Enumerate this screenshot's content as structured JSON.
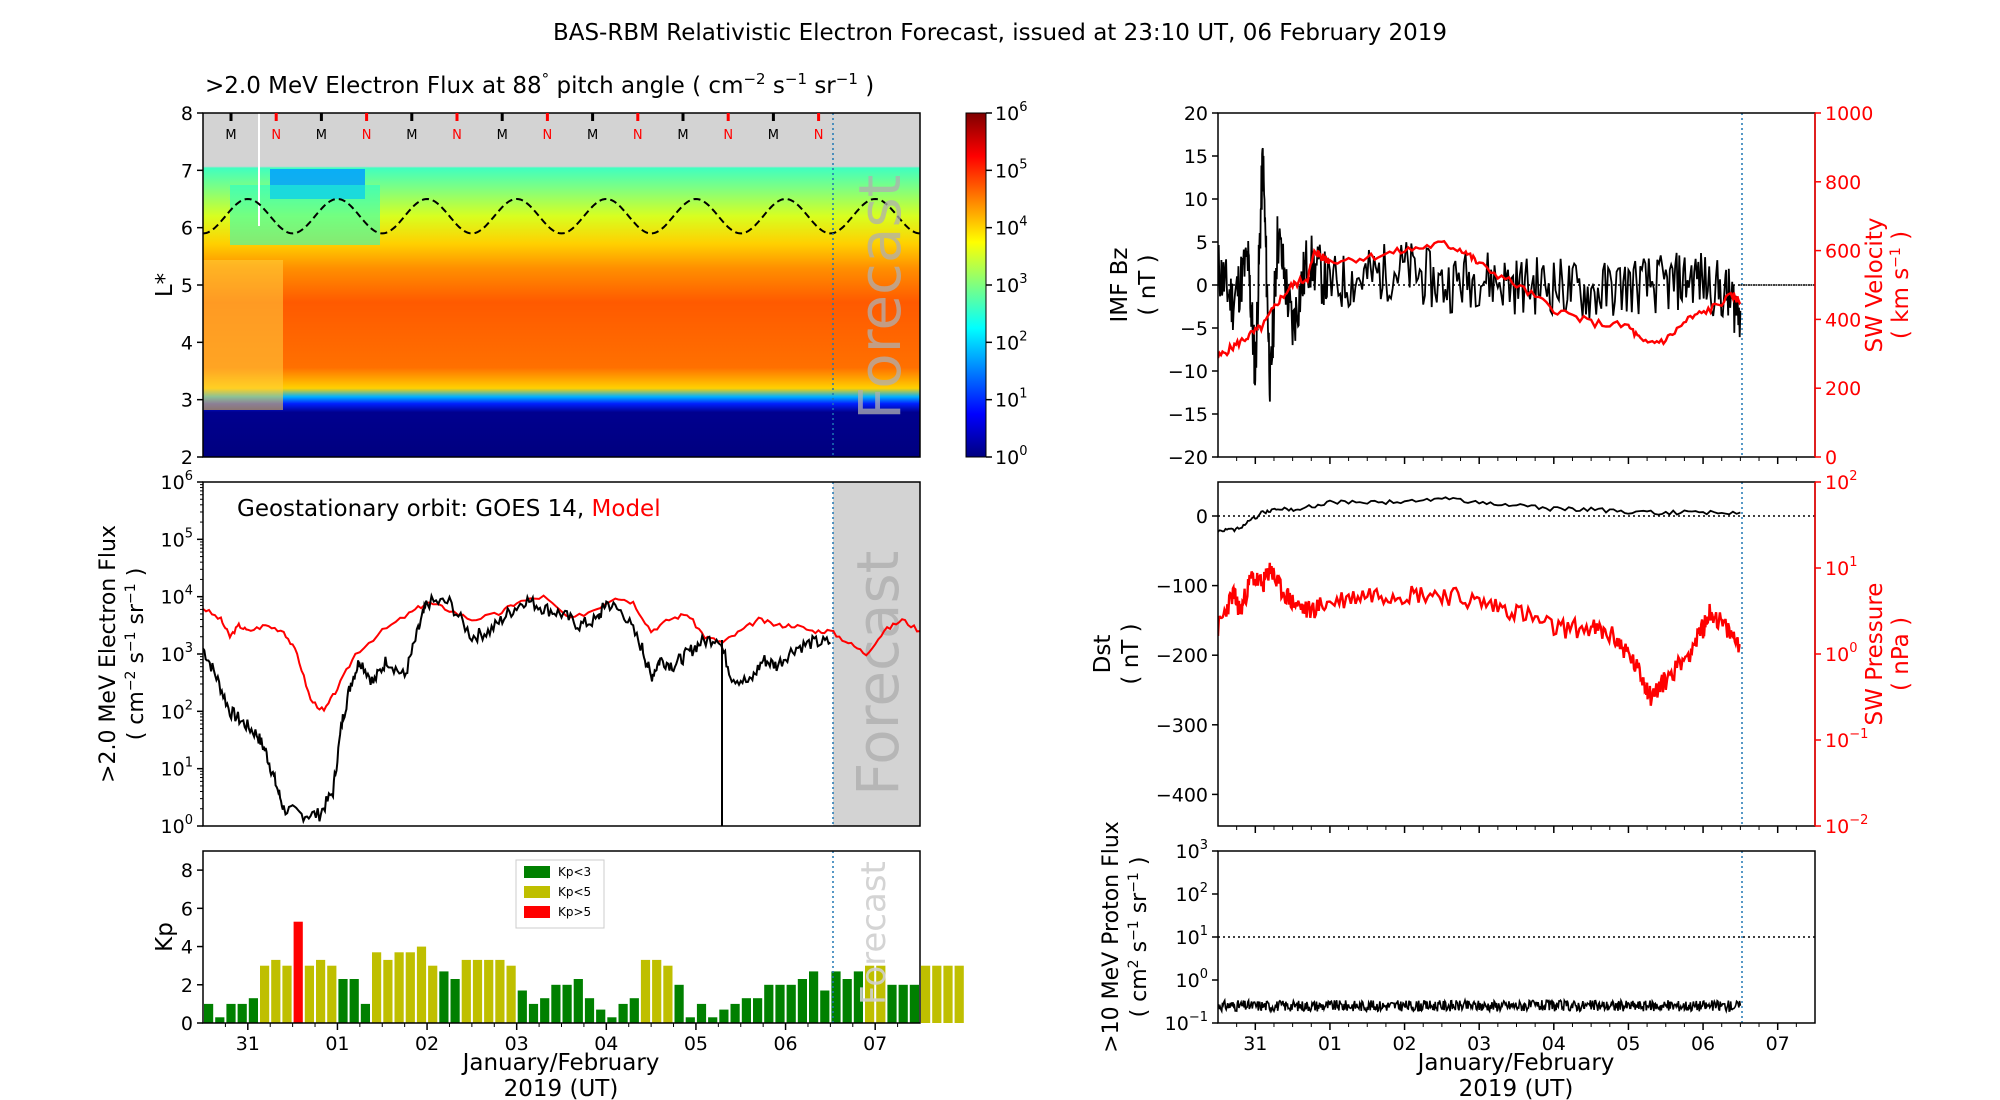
{
  "title": "BAS-RBM Relativistic Electron Forecast, issued at 23:10 UT, 06 February 2019",
  "x_axis": {
    "tick_labels": [
      "31",
      "01",
      "02",
      "03",
      "04",
      "05",
      "06",
      "07"
    ],
    "label_line1": "January/February",
    "label_line2": "2019 (UT)"
  },
  "forecast_label": "Forecast",
  "colors": {
    "model": "#ff0000",
    "kp_low": "#008000",
    "kp_mid": "#bfbf00",
    "kp_high": "#ff0000",
    "forecast_shade": "#d3d3d3",
    "dashed_line": "#1f77b4"
  },
  "panels": {
    "flux_map": {
      "title_main": ">2.0 MeV Electron Flux at 88",
      "title_deg": "°",
      "title_units_pre": "pitch angle ( cm",
      "title_units_post": " )",
      "ylabel": "L*",
      "y_ticks": [
        "2",
        "3",
        "4",
        "5",
        "6",
        "7",
        "8"
      ],
      "colorbar_ticks": [
        "0",
        "1",
        "2",
        "3",
        "4",
        "5",
        "6"
      ],
      "mn_markers": [
        "M",
        "N",
        "M",
        "N",
        "M",
        "N",
        "M",
        "N",
        "M",
        "N",
        "M",
        "N",
        "M",
        "N"
      ]
    },
    "geo": {
      "label_prefix": "Geostationary orbit:   GOES 14,",
      "label_model": "Model",
      "ylabel_line1": ">2.0 MeV Electron Flux",
      "ylabel_line2": "( cm",
      "y_exps": [
        "0",
        "1",
        "2",
        "3",
        "4",
        "5",
        "6"
      ]
    },
    "kp": {
      "ylabel": "Kp",
      "y_ticks": [
        "0",
        "2",
        "4",
        "6",
        "8"
      ],
      "legend": [
        "Kp<3",
        "Kp<5",
        "Kp>5"
      ]
    },
    "imf": {
      "ylabel_left1": "IMF Bz",
      "ylabel_left2": "( nT )",
      "ylabel_right1": "SW Velocity",
      "ylabel_right2": "( km s",
      "y_left_ticks": [
        "20",
        "15",
        "10",
        "5",
        "0",
        "−5",
        "−10",
        "−15",
        "−20"
      ],
      "y_right_ticks": [
        "1000",
        "800",
        "600",
        "400",
        "200",
        "0"
      ]
    },
    "dst": {
      "ylabel_left1": "Dst",
      "ylabel_left2": "( nT )",
      "ylabel_right1": "SW Pressure",
      "ylabel_right2": "( nPa )",
      "y_left_ticks": [
        "0",
        "−100",
        "−200",
        "−300",
        "−400"
      ],
      "y_right_exps": [
        "2",
        "1",
        "0",
        "−1",
        "−2"
      ]
    },
    "proton": {
      "ylabel_line1": ">10 MeV Proton Flux",
      "ylabel_line2": "( cm",
      "y_exps": [
        "3",
        "2",
        "1",
        "0",
        "−1"
      ]
    }
  },
  "chart_data": [
    {
      "id": "flux_map",
      "type": "heatmap",
      "description_axis": "L* vs time",
      "ylim": [
        2,
        8
      ],
      "color_scale": "log10 flux 1e0 to 1e6",
      "plasmapause_dashed_L": [
        6.2,
        6.5,
        6.2,
        5.9,
        6.2,
        6.5,
        6.2,
        5.9
      ],
      "flux_profile_L": [
        2,
        2.9,
        3.1,
        3.3,
        4,
        5,
        5.5,
        6,
        7
      ],
      "flux_profile_log10": [
        0.2,
        0.3,
        2.0,
        3.6,
        5.0,
        4.6,
        4.1,
        3.6,
        2.6
      ]
    },
    {
      "id": "geo_flux",
      "type": "line",
      "ylim_log10": [
        0,
        6
      ],
      "x_days": [
        -0.5,
        7.5
      ],
      "series": [
        {
          "name": "GOES 14",
          "x": [
            -0.5,
            -0.35,
            -0.2,
            -0.05,
            0.1,
            0.2,
            0.3,
            0.4,
            0.6,
            0.8,
            0.95,
            1.05,
            1.15,
            1.25,
            1.4,
            1.55,
            1.75,
            1.9,
            2.0,
            2.25,
            2.5,
            2.7,
            2.9,
            3.1,
            3.3,
            3.5,
            3.7,
            3.9,
            4.0,
            4.2,
            4.4,
            4.5,
            4.6,
            4.75,
            4.9,
            5.05,
            5.25,
            5.4,
            5.6,
            5.75,
            5.9,
            6.1,
            6.3,
            6.5
          ],
          "values_log10": [
            3.1,
            2.6,
            2.0,
            1.8,
            1.6,
            1.3,
            0.8,
            0.3,
            0.2,
            0.2,
            0.6,
            1.8,
            2.5,
            2.9,
            2.5,
            2.9,
            2.6,
            3.4,
            3.9,
            3.9,
            3.3,
            3.4,
            3.7,
            3.95,
            3.8,
            3.7,
            3.5,
            3.6,
            3.9,
            3.7,
            3.1,
            2.6,
            2.9,
            2.8,
            3.0,
            3.2,
            3.3,
            2.6,
            2.5,
            2.9,
            2.8,
            3.1,
            3.2,
            3.2
          ]
        },
        {
          "name": "Model",
          "x": [
            -0.5,
            -0.3,
            -0.2,
            -0.1,
            0.0,
            0.2,
            0.4,
            0.55,
            0.7,
            0.85,
            1.0,
            1.2,
            1.5,
            1.8,
            2.0,
            2.2,
            2.5,
            2.8,
            3.0,
            3.3,
            3.6,
            3.9,
            4.1,
            4.3,
            4.5,
            4.7,
            4.9,
            5.1,
            5.3,
            5.5,
            5.7,
            5.9,
            6.1,
            6.3,
            6.5,
            6.7,
            6.9,
            7.1,
            7.3,
            7.5
          ],
          "values_log10": [
            3.8,
            3.6,
            3.3,
            3.5,
            3.4,
            3.5,
            3.4,
            3.0,
            2.2,
            2.0,
            2.4,
            3.0,
            3.4,
            3.7,
            3.9,
            3.8,
            3.6,
            3.7,
            3.9,
            4.0,
            3.6,
            3.8,
            4.0,
            3.9,
            3.4,
            3.6,
            3.7,
            3.3,
            3.2,
            3.4,
            3.6,
            3.5,
            3.5,
            3.4,
            3.4,
            3.2,
            3.0,
            3.4,
            3.6,
            3.4
          ]
        }
      ]
    },
    {
      "id": "kp",
      "type": "bar",
      "ylim": [
        0,
        9
      ],
      "x_start_day": -0.5,
      "bar_width_days": 0.125,
      "values": [
        1.0,
        0.3,
        1.0,
        1.0,
        1.3,
        3.0,
        3.3,
        3.0,
        5.3,
        3.0,
        3.3,
        3.0,
        2.3,
        2.3,
        1.0,
        3.7,
        3.3,
        3.7,
        3.7,
        4.0,
        3.0,
        2.7,
        2.3,
        3.3,
        3.3,
        3.3,
        3.3,
        3.0,
        1.7,
        1.0,
        1.3,
        2.0,
        2.0,
        2.3,
        1.3,
        0.7,
        0.3,
        1.0,
        1.3,
        3.3,
        3.3,
        3.0,
        2.0,
        0.3,
        1.0,
        0.3,
        0.7,
        1.0,
        1.3,
        1.3,
        2.0,
        2.0,
        2.0,
        2.3,
        2.7,
        1.7,
        2.7,
        2.3,
        2.7,
        3.0,
        3.0,
        2.0,
        2.0,
        2.0,
        3.0,
        3.0,
        3.0,
        3.0
      ]
    },
    {
      "id": "imf_sw",
      "type": "line",
      "ylim_left": [
        -20,
        20
      ],
      "ylim_right": [
        0,
        1000
      ],
      "series": [
        {
          "name": "IMF Bz",
          "x": [
            -0.5,
            -0.3,
            -0.1,
            0.0,
            0.1,
            0.2,
            0.3,
            0.5,
            0.7,
            1.0,
            1.5,
            2.0,
            2.5,
            3.0,
            3.5,
            4.0,
            4.5,
            5.0,
            5.5,
            5.9,
            6.3,
            6.5
          ],
          "values": [
            2,
            -2,
            3,
            -10,
            15,
            -12,
            6,
            -5,
            3,
            0,
            1,
            2,
            0,
            1,
            0,
            0,
            -1,
            0,
            0,
            1,
            -1,
            -3
          ]
        },
        {
          "name": "SW Velocity",
          "x": [
            -0.5,
            -0.3,
            -0.1,
            0.1,
            0.3,
            0.5,
            0.7,
            0.8,
            0.9,
            1.0,
            1.5,
            2.0,
            2.5,
            2.8,
            3.0,
            3.5,
            4.0,
            4.5,
            5.0,
            5.2,
            5.5,
            5.8,
            6.1,
            6.4,
            6.5
          ],
          "values": [
            290,
            320,
            350,
            380,
            450,
            500,
            520,
            600,
            580,
            570,
            580,
            600,
            620,
            600,
            560,
            500,
            430,
            390,
            380,
            330,
            340,
            400,
            430,
            470,
            450
          ]
        }
      ]
    },
    {
      "id": "dst_pressure",
      "type": "line",
      "ylim_left": [
        -450,
        30
      ],
      "ylim_right_log10": [
        -2,
        2
      ],
      "series": [
        {
          "name": "Dst",
          "x": [
            -0.5,
            -0.3,
            -0.1,
            0.1,
            0.3,
            0.6,
            1.0,
            1.5,
            2.0,
            2.5,
            3.0,
            3.5,
            4.0,
            4.5,
            5.0,
            5.5,
            6.0,
            6.5
          ],
          "values": [
            20,
            20,
            10,
            -5,
            -10,
            -10,
            -20,
            -20,
            -20,
            -25,
            -20,
            -15,
            -10,
            -10,
            -5,
            -5,
            -5,
            -5
          ]
        },
        {
          "name": "SW Pressure",
          "x": [
            -0.5,
            -0.3,
            -0.2,
            -0.05,
            0.1,
            0.2,
            0.3,
            0.5,
            0.7,
            1.0,
            1.5,
            2.0,
            2.5,
            3.0,
            3.5,
            4.0,
            4.5,
            4.8,
            5.0,
            5.2,
            5.3,
            5.5,
            5.8,
            6.0,
            6.1,
            6.3,
            6.5
          ],
          "values_log10": [
            0.3,
            0.7,
            0.5,
            0.9,
            0.8,
            1.0,
            0.8,
            0.6,
            0.5,
            0.6,
            0.7,
            0.7,
            0.7,
            0.6,
            0.5,
            0.3,
            0.3,
            0.2,
            0.0,
            -0.3,
            -0.5,
            -0.3,
            0.0,
            0.3,
            0.5,
            0.3,
            0.1
          ]
        }
      ]
    },
    {
      "id": "proton_flux",
      "type": "line",
      "ylim_log10": [
        -1,
        3
      ],
      "threshold": 10,
      "series": [
        {
          "name": ">10 MeV Proton Flux",
          "x": [
            -0.5,
            6.5
          ],
          "values_log10": [
            -0.6,
            -0.6
          ]
        }
      ]
    }
  ]
}
